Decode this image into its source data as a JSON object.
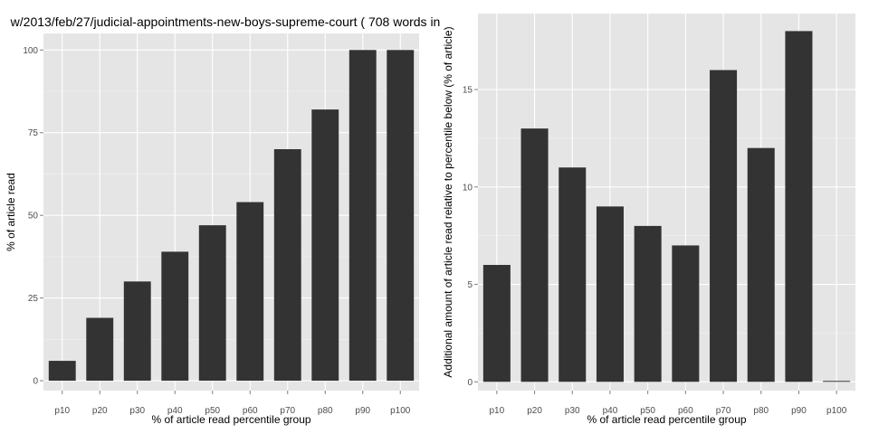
{
  "chart_data": [
    {
      "type": "bar",
      "title": "w/2013/feb/27/judicial-appointments-new-boys-supreme-court ( 708 words in",
      "xlabel": "% of article read percentile group",
      "ylabel": "% of article read",
      "categories": [
        "p10",
        "p20",
        "p30",
        "p40",
        "p50",
        "p60",
        "p70",
        "p80",
        "p90",
        "p100"
      ],
      "values": [
        6,
        19,
        30,
        39,
        47,
        54,
        70,
        82,
        100,
        100
      ],
      "ylim": [
        -3,
        105
      ],
      "yticks": [
        0,
        25,
        50,
        75,
        100
      ],
      "grid": true,
      "colors": {
        "panel": "#e5e5e5",
        "bar": "#333333",
        "grid": "#ffffff"
      }
    },
    {
      "type": "bar",
      "title": "",
      "xlabel": "% of article read percentile group",
      "ylabel": "Additional amount of article read relative to percentile below (% of article)",
      "categories": [
        "p10",
        "p20",
        "p30",
        "p40",
        "p50",
        "p60",
        "p70",
        "p80",
        "p90",
        "p100"
      ],
      "values": [
        6,
        13,
        11,
        9,
        8,
        7,
        16,
        12,
        18,
        0
      ],
      "ylim": [
        -0.45,
        18.9
      ],
      "yticks": [
        0,
        5,
        10,
        15
      ],
      "grid": true,
      "colors": {
        "panel": "#e5e5e5",
        "bar": "#333333",
        "grid": "#ffffff"
      }
    }
  ]
}
